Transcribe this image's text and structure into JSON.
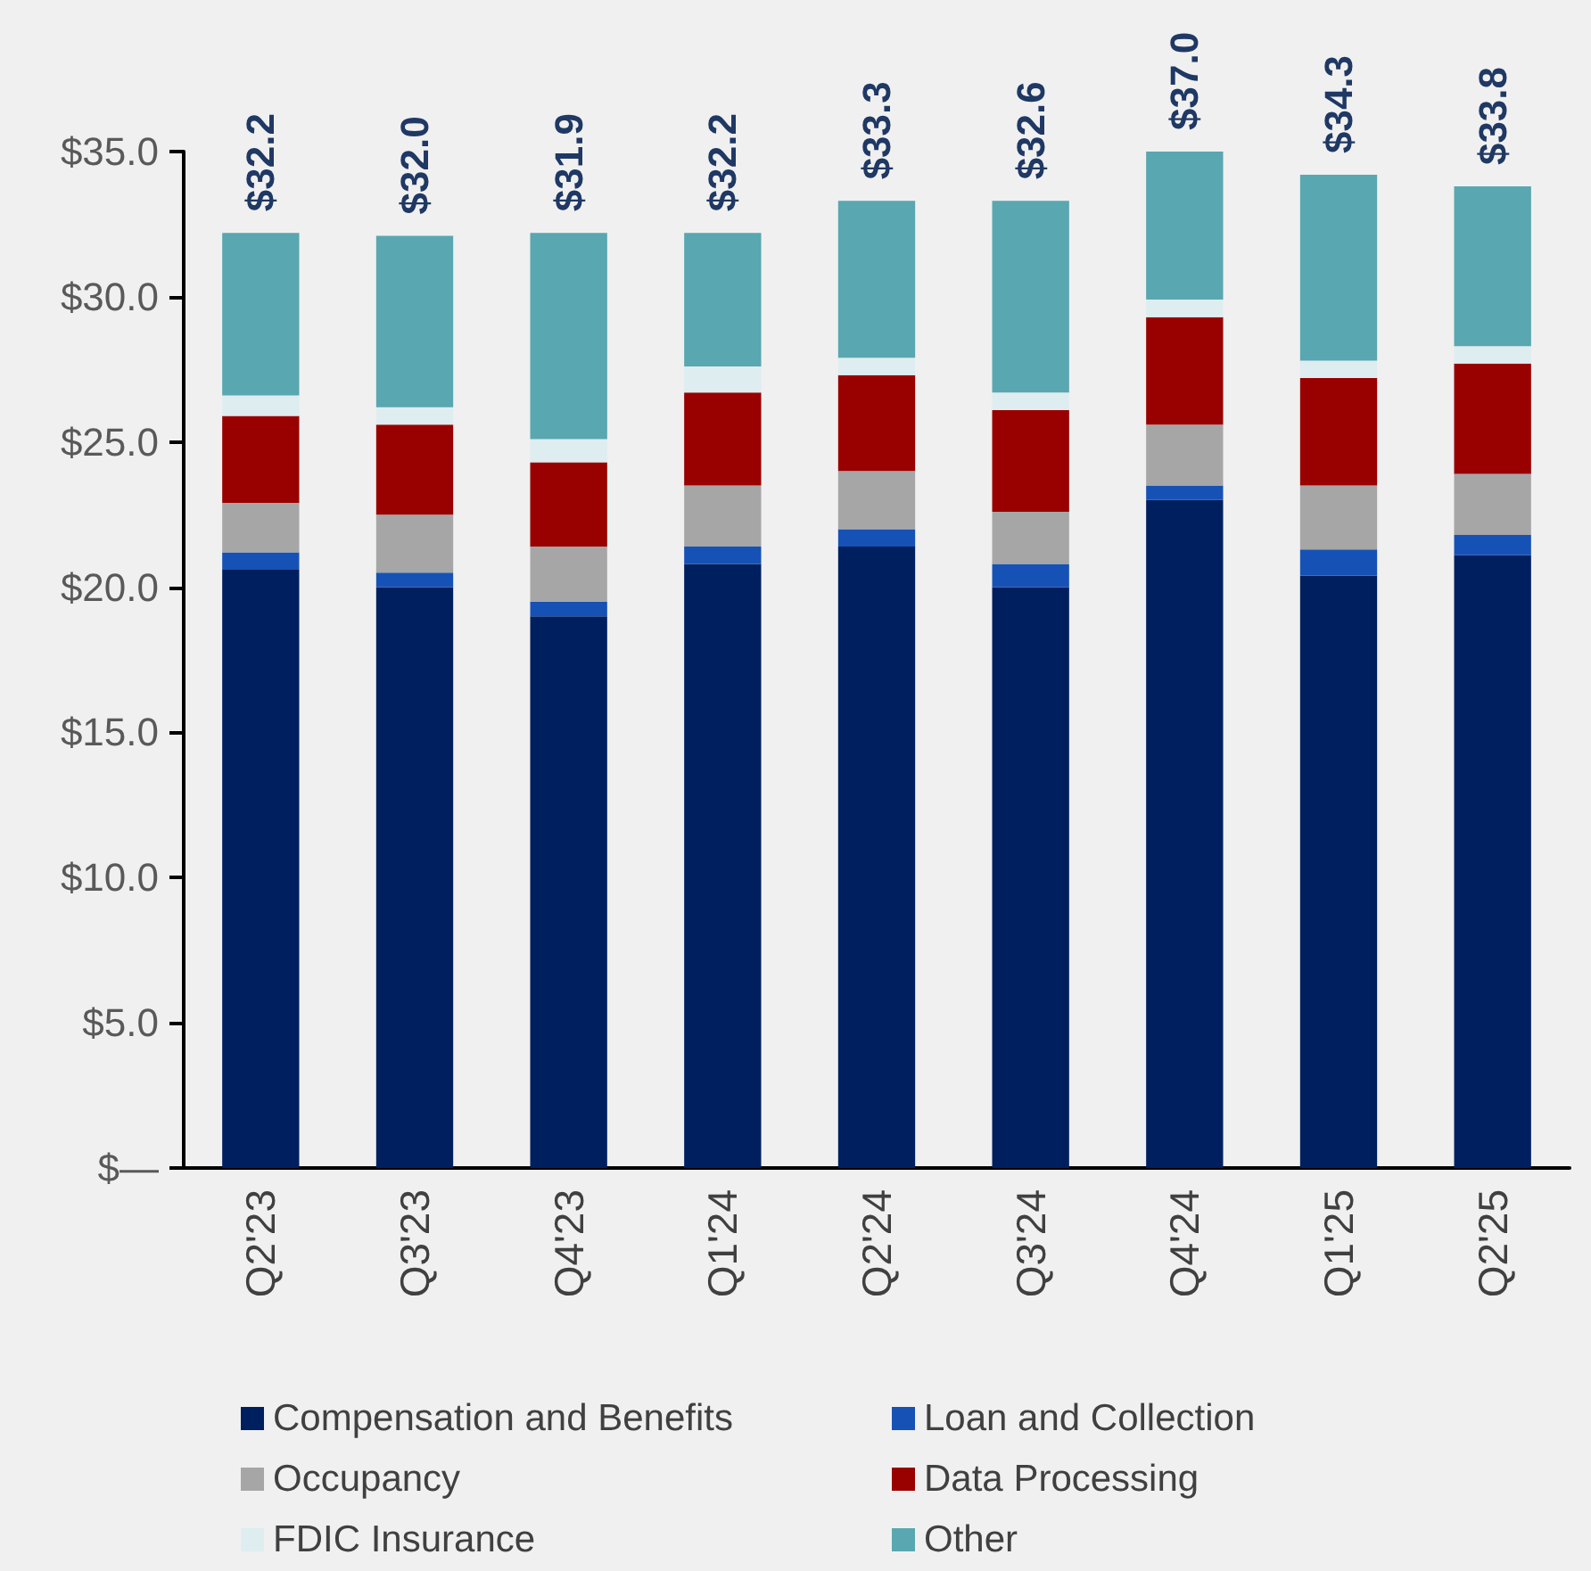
{
  "chart_data": {
    "type": "bar",
    "stacked": true,
    "categories": [
      "Q2'23",
      "Q3'23",
      "Q4'23",
      "Q1'24",
      "Q2'24",
      "Q3'24",
      "Q4'24",
      "Q1'25",
      "Q2'25"
    ],
    "series": [
      {
        "name": "Compensation and Benefits",
        "color": "#001f5f",
        "values": [
          20.6,
          20.0,
          19.0,
          20.8,
          21.4,
          20.0,
          23.0,
          20.4,
          21.1
        ]
      },
      {
        "name": "Loan and Collection",
        "color": "#1652b5",
        "values": [
          0.6,
          0.5,
          0.5,
          0.6,
          0.6,
          0.8,
          0.5,
          0.9,
          0.7
        ]
      },
      {
        "name": "Occupancy",
        "color": "#a6a6a6",
        "values": [
          1.7,
          2.0,
          1.9,
          2.1,
          2.0,
          1.8,
          2.1,
          2.2,
          2.1
        ]
      },
      {
        "name": "Data Processing",
        "color": "#990000",
        "values": [
          3.0,
          3.1,
          2.9,
          3.2,
          3.3,
          3.5,
          3.7,
          3.7,
          3.8
        ]
      },
      {
        "name": "FDIC Insurance",
        "color": "#deedf0",
        "values": [
          0.7,
          0.6,
          0.8,
          0.9,
          0.6,
          0.6,
          0.6,
          0.6,
          0.6
        ]
      },
      {
        "name": "Other",
        "color": "#59a7b0",
        "values": [
          5.6,
          5.9,
          7.1,
          4.6,
          5.4,
          6.6,
          5.1,
          6.4,
          5.5
        ]
      }
    ],
    "annotations": [
      "$32.2",
      "$32.0",
      "$31.9",
      "$32.2",
      "$33.3",
      "$32.6",
      "$37.0",
      "$34.3",
      "$33.8"
    ],
    "ylim": [
      0,
      35
    ],
    "yticks": [
      {
        "value": 0,
        "label": "$—"
      },
      {
        "value": 5,
        "label": "$5.0"
      },
      {
        "value": 10,
        "label": "$10.0"
      },
      {
        "value": 15,
        "label": "$15.0"
      },
      {
        "value": 20,
        "label": "$20.0"
      },
      {
        "value": 25,
        "label": "$25.0"
      },
      {
        "value": 30,
        "label": "$30.0"
      },
      {
        "value": 35,
        "label": "$35.0"
      }
    ],
    "grid": false,
    "legend": "bottom"
  }
}
